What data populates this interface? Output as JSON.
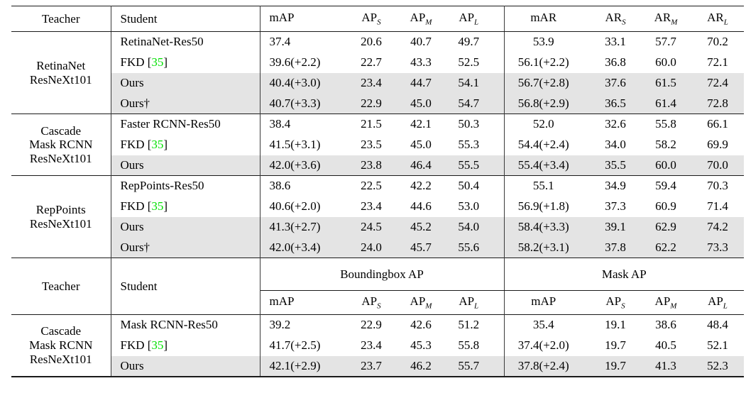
{
  "colors": {
    "citation_green": "#00e000",
    "row_shade": "#e4e4e4"
  },
  "header_top": {
    "teacher": "Teacher",
    "student": "Student",
    "metrics": [
      {
        "base": "mAP",
        "sub": ""
      },
      {
        "base": "AP",
        "sub": "S"
      },
      {
        "base": "AP",
        "sub": "M"
      },
      {
        "base": "AP",
        "sub": "L"
      },
      {
        "base": "mAR",
        "sub": ""
      },
      {
        "base": "AR",
        "sub": "S"
      },
      {
        "base": "AR",
        "sub": "M"
      },
      {
        "base": "AR",
        "sub": "L"
      }
    ]
  },
  "header_mid": {
    "teacher": "Teacher",
    "student": "Student",
    "groups": [
      {
        "label": "Boundingbox AP"
      },
      {
        "label": "Mask AP"
      }
    ],
    "metrics": [
      {
        "base": "mAP",
        "sub": ""
      },
      {
        "base": "AP",
        "sub": "S"
      },
      {
        "base": "AP",
        "sub": "M"
      },
      {
        "base": "AP",
        "sub": "L"
      },
      {
        "base": "mAP",
        "sub": ""
      },
      {
        "base": "AP",
        "sub": "S"
      },
      {
        "base": "AP",
        "sub": "M"
      },
      {
        "base": "AP",
        "sub": "L"
      }
    ]
  },
  "blocks_top": [
    {
      "teacher_lines": [
        "RetinaNet",
        "ResNeXt101"
      ],
      "rows": [
        {
          "s_pre": "RetinaNet-Res50",
          "s_green": "",
          "s_post": "",
          "shaded": false,
          "values": [
            "37.4",
            "20.6",
            "40.7",
            "49.7",
            "53.9",
            "33.1",
            "57.7",
            "70.2"
          ]
        },
        {
          "s_pre": "FKD [",
          "s_green": "35",
          "s_post": "]",
          "shaded": false,
          "values": [
            "39.6(+2.2)",
            "22.7",
            "43.3",
            "52.5",
            "56.1(+2.2)",
            "36.8",
            "60.0",
            "72.1"
          ]
        },
        {
          "s_pre": "Ours",
          "s_green": "",
          "s_post": "",
          "shaded": true,
          "values": [
            "40.4(+3.0)",
            "23.4",
            "44.7",
            "54.1",
            "56.7(+2.8)",
            "37.6",
            "61.5",
            "72.4"
          ]
        },
        {
          "s_pre": "Ours†",
          "s_green": "",
          "s_post": "",
          "shaded": true,
          "values": [
            "40.7(+3.3)",
            "22.9",
            "45.0",
            "54.7",
            "56.8(+2.9)",
            "36.5",
            "61.4",
            "72.8"
          ]
        }
      ]
    },
    {
      "teacher_lines": [
        "Cascade",
        "Mask RCNN",
        "ResNeXt101"
      ],
      "rows": [
        {
          "s_pre": "Faster RCNN-Res50",
          "s_green": "",
          "s_post": "",
          "shaded": false,
          "values": [
            "38.4",
            "21.5",
            "42.1",
            "50.3",
            "52.0",
            "32.6",
            "55.8",
            "66.1"
          ]
        },
        {
          "s_pre": "FKD [",
          "s_green": "35",
          "s_post": "]",
          "shaded": false,
          "values": [
            "41.5(+3.1)",
            "23.5",
            "45.0",
            "55.3",
            "54.4(+2.4)",
            "34.0",
            "58.2",
            "69.9"
          ]
        },
        {
          "s_pre": "Ours",
          "s_green": "",
          "s_post": "",
          "shaded": true,
          "values": [
            "42.0(+3.6)",
            "23.8",
            "46.4",
            "55.5",
            "55.4(+3.4)",
            "35.5",
            "60.0",
            "70.0"
          ]
        }
      ]
    },
    {
      "teacher_lines": [
        "RepPoints",
        "ResNeXt101"
      ],
      "rows": [
        {
          "s_pre": "RepPoints-Res50",
          "s_green": "",
          "s_post": "",
          "shaded": false,
          "values": [
            "38.6",
            "22.5",
            "42.2",
            "50.4",
            "55.1",
            "34.9",
            "59.4",
            "70.3"
          ]
        },
        {
          "s_pre": "FKD [",
          "s_green": "35",
          "s_post": "]",
          "shaded": false,
          "values": [
            "40.6(+2.0)",
            "23.4",
            "44.6",
            "53.0",
            "56.9(+1.8)",
            "37.3",
            "60.9",
            "71.4"
          ]
        },
        {
          "s_pre": "Ours",
          "s_green": "",
          "s_post": "",
          "shaded": true,
          "values": [
            "41.3(+2.7)",
            "24.5",
            "45.2",
            "54.0",
            "58.4(+3.3)",
            "39.1",
            "62.9",
            "74.2"
          ]
        },
        {
          "s_pre": "Ours†",
          "s_green": "",
          "s_post": "",
          "shaded": true,
          "values": [
            "42.0(+3.4)",
            "24.0",
            "45.7",
            "55.6",
            "58.2(+3.1)",
            "37.8",
            "62.2",
            "73.3"
          ]
        }
      ]
    }
  ],
  "blocks_bottom": [
    {
      "teacher_lines": [
        "Cascade",
        "Mask RCNN",
        "ResNeXt101"
      ],
      "rows": [
        {
          "s_pre": "Mask RCNN-Res50",
          "s_green": "",
          "s_post": "",
          "shaded": false,
          "values": [
            "39.2",
            "22.9",
            "42.6",
            "51.2",
            "35.4",
            "19.1",
            "38.6",
            "48.4"
          ]
        },
        {
          "s_pre": "FKD [",
          "s_green": "35",
          "s_post": "]",
          "shaded": false,
          "values": [
            "41.7(+2.5)",
            "23.4",
            "45.3",
            "55.8",
            "37.4(+2.0)",
            "19.7",
            "40.5",
            "52.1"
          ]
        },
        {
          "s_pre": "Ours",
          "s_green": "",
          "s_post": "",
          "shaded": true,
          "values": [
            "42.1(+2.9)",
            "23.7",
            "46.2",
            "55.7",
            "37.8(+2.4)",
            "19.7",
            "41.3",
            "52.3"
          ]
        }
      ]
    }
  ]
}
